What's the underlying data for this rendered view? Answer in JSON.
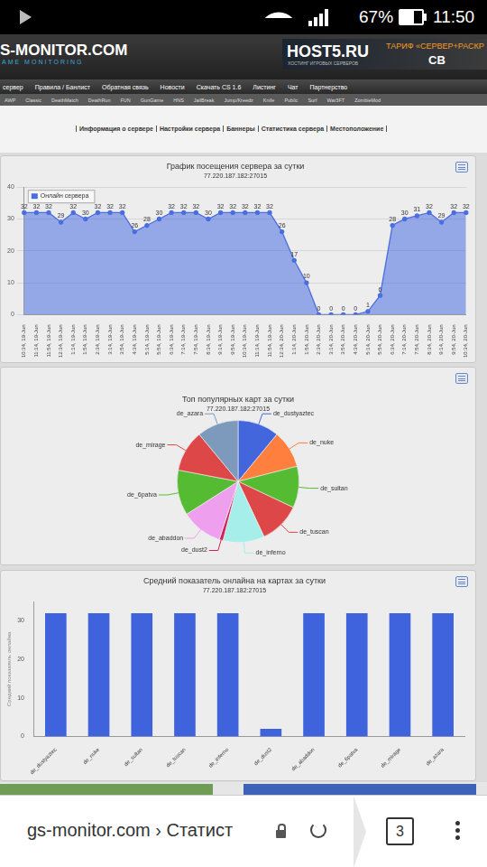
{
  "status_bar": {
    "battery": "67%",
    "time": "11:50"
  },
  "site_header": {
    "logo": "S-MONITOR.COM",
    "logo_tagline": "AME MONITORING",
    "banner": {
      "brand": "HOST5.RU",
      "brand_tagline": "ХОСТИНГ ИГРОВЫХ СЕРВЕРОВ",
      "offer": "ТАРИФ «СЕРВЕР+РАСКР",
      "badge": "CB"
    }
  },
  "nav": [
    "сервер",
    "Правила / Банлист",
    "Обратная связь",
    "Новости",
    "Скачать CS 1.6",
    "Листинг",
    "Чат",
    "Партнерство"
  ],
  "modes": [
    "AWP",
    "Classic",
    "DeathMatch",
    "DeathRun",
    "FUN",
    "GunGame",
    "HNS",
    "JailBreak",
    "Jump/Kreedz",
    "Knife",
    "Public",
    "Surf",
    "War3FT",
    "ZombieMod"
  ],
  "server_links": [
    "Информация о сервере",
    "Настройки сервера",
    "Баннеры",
    "Статистика сервера",
    "Местоположение"
  ],
  "chart_data": [
    {
      "type": "area",
      "title": "График посещения сервера за сутки",
      "subtitle": "77.220.187.182:27015",
      "categories": [
        "10:34, 19-Jun",
        "11:14, 19-Jun",
        "11:54, 19-Jun",
        "12:34, 19-Jun",
        "1:14, 19-Jun",
        "1:54, 19-Jun",
        "2:34, 19-Jun",
        "3:14, 19-Jun",
        "3:54, 19-Jun",
        "4:34, 19-Jun",
        "5:14, 19-Jun",
        "5:54, 19-Jun",
        "6:34, 19-Jun",
        "7:14, 19-Jun",
        "7:54, 19-Jun",
        "8:34, 19-Jun",
        "9:14, 19-Jun",
        "9:54, 19-Jun",
        "10:34, 19-Jun",
        "11:14, 19-Jun",
        "11:54, 19-Jun",
        "12:34, 20-Jun",
        "1:14, 20-Jun",
        "1:54, 20-Jun",
        "2:34, 20-Jun",
        "3:14, 20-Jun",
        "3:54, 20-Jun",
        "4:34, 20-Jun",
        "5:14, 20-Jun",
        "5:54, 20-Jun",
        "6:34, 20-Jun",
        "7:14, 20-Jun",
        "7:54, 20-Jun",
        "8:34, 20-Jun",
        "9:14, 20-Jun",
        "9:54, 20-Jun",
        "10:34, 20-Jun"
      ],
      "series": [
        {
          "name": "Онлайн сервера",
          "color": "#4a6ee0",
          "marker": "circle",
          "values": [
            32,
            32,
            32,
            29,
            32,
            30,
            32,
            32,
            32,
            26,
            28,
            30,
            32,
            32,
            32,
            30,
            32,
            32,
            32,
            32,
            32,
            26,
            17,
            10,
            0,
            0,
            0,
            0,
            1,
            6,
            28,
            30,
            31,
            32,
            29,
            32,
            32
          ]
        }
      ],
      "ylim": [
        0,
        40
      ],
      "yticks": [
        0,
        10,
        20,
        30,
        40
      ],
      "grid": true,
      "legend": "top-left",
      "data_labels": true
    },
    {
      "type": "pie",
      "title": "Топ популярных карт за сутки",
      "subtitle": "77.220.187.182:27015",
      "categories": [
        "de_dustyaztec",
        "de_nuke",
        "de_sultan",
        "de_tuscan",
        "de_inferno",
        "de_dust2",
        "de_abaddon",
        "de_6patva",
        "de_mirage",
        "de_azara"
      ],
      "values": [
        11,
        10,
        11,
        11,
        11,
        1,
        11,
        12,
        11,
        11
      ],
      "colors": [
        "#4466dd",
        "#ff7f3f",
        "#55bb33",
        "#dd4747",
        "#a6eeea",
        "#cc2255",
        "#eea0ee",
        "#55bb33",
        "#dd4747",
        "#7d99bb"
      ]
    },
    {
      "type": "bar",
      "title": "Средний показатель онлайна на картах за сутки",
      "subtitle": "77.220.187.182:27015",
      "y_label": "Средний показатель онлайна",
      "categories": [
        "de_dustyaztec",
        "de_nuke",
        "de_sultan",
        "de_tuscan",
        "de_inferno",
        "de_dust2",
        "de_abaddon",
        "de_6patva",
        "de_mirage",
        "de_azara"
      ],
      "values": [
        32,
        32,
        32,
        32,
        32,
        2,
        32,
        32,
        32,
        32
      ],
      "color": "#3f63dd",
      "ylim": [
        0,
        35
      ],
      "yticks": [
        0,
        10,
        20,
        30
      ],
      "grid": false
    }
  ],
  "browser_bar": {
    "address": "gs-monitor.com › Статист",
    "tabs": 3
  }
}
